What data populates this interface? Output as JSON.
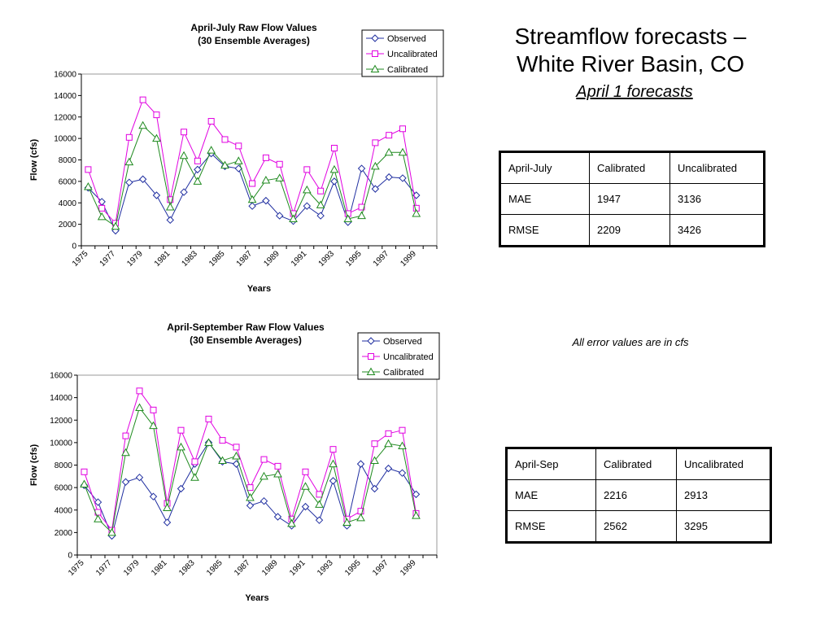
{
  "slide": {
    "title_line1": "Streamflow forecasts –",
    "title_line2": "White River Basin, CO",
    "subtitle": "April 1 forecasts",
    "note": "All error values are in cfs"
  },
  "tables": [
    {
      "header": [
        "April-July",
        "Calibrated",
        "Uncalibrated"
      ],
      "rows": [
        [
          "MAE",
          "1947",
          "3136"
        ],
        [
          "RMSE",
          "2209",
          "3426"
        ]
      ]
    },
    {
      "header": [
        "April-Sep",
        "Calibrated",
        "Uncalibrated"
      ],
      "rows": [
        [
          "MAE",
          "2216",
          "2913"
        ],
        [
          "RMSE",
          "2562",
          "3295"
        ]
      ]
    }
  ],
  "colors": {
    "observed": "#1f2ea0",
    "uncalibrated": "#e100e1",
    "calibrated": "#1f8a1f"
  },
  "chart_data": [
    {
      "type": "line",
      "title": "April-July Raw Flow Values",
      "subtitle": "(30 Ensemble Averages)",
      "xlabel": "Years",
      "ylabel": "Flow (cfs)",
      "ylim": [
        0,
        16000
      ],
      "yticks": [
        0,
        2000,
        4000,
        6000,
        8000,
        10000,
        12000,
        14000,
        16000
      ],
      "xticks": [
        "1975",
        "1977",
        "1979",
        "1981",
        "1983",
        "1985",
        "1987",
        "1989",
        "1991",
        "1993",
        "1995",
        "1997",
        "1999"
      ],
      "legend_position": "top-right",
      "x": [
        1975,
        1976,
        1977,
        1978,
        1979,
        1980,
        1981,
        1982,
        1983,
        1984,
        1985,
        1986,
        1987,
        1988,
        1989,
        1990,
        1991,
        1992,
        1993,
        1994,
        1995,
        1996,
        1997,
        1998,
        1999,
        2000
      ],
      "series": [
        {
          "name": "Observed",
          "marker": "diamond",
          "values": [
            5400,
            4100,
            1400,
            5900,
            6200,
            4700,
            2400,
            5000,
            7100,
            8600,
            7400,
            7200,
            3700,
            4200,
            2800,
            2300,
            3700,
            2800,
            6000,
            2200,
            7200,
            5300,
            6400,
            6300,
            4700,
            null
          ]
        },
        {
          "name": "Uncalibrated",
          "marker": "square",
          "values": [
            7100,
            3500,
            2100,
            10100,
            13600,
            12200,
            4300,
            10600,
            7900,
            11600,
            9900,
            9300,
            5800,
            8200,
            7600,
            3000,
            7100,
            5100,
            9100,
            3000,
            3600,
            9600,
            10300,
            10900,
            3500,
            null
          ]
        },
        {
          "name": "Calibrated",
          "marker": "triangle",
          "values": [
            5500,
            2700,
            1800,
            7800,
            11200,
            10000,
            3600,
            8400,
            6000,
            8900,
            7500,
            7900,
            4300,
            6100,
            6300,
            2500,
            5200,
            3800,
            7100,
            2500,
            2800,
            7400,
            8700,
            8700,
            3000,
            null
          ]
        }
      ]
    },
    {
      "type": "line",
      "title": "April-September Raw Flow Values",
      "subtitle": "(30 Ensemble Averages)",
      "xlabel": "Years",
      "ylabel": "Flow (cfs)",
      "ylim": [
        0,
        16000
      ],
      "yticks": [
        0,
        2000,
        4000,
        6000,
        8000,
        10000,
        12000,
        14000,
        16000
      ],
      "xticks": [
        "1975",
        "1977",
        "1979",
        "1981",
        "1983",
        "1985",
        "1987",
        "1989",
        "1991",
        "1993",
        "1995",
        "1997",
        "1999"
      ],
      "legend_position": "top-right",
      "x": [
        1975,
        1976,
        1977,
        1978,
        1979,
        1980,
        1981,
        1982,
        1983,
        1984,
        1985,
        1986,
        1987,
        1988,
        1989,
        1990,
        1991,
        1992,
        1993,
        1994,
        1995,
        1996,
        1997,
        1998,
        1999,
        2000
      ],
      "series": [
        {
          "name": "Observed",
          "marker": "diamond",
          "values": [
            6200,
            4700,
            1700,
            6500,
            6900,
            5200,
            2900,
            5900,
            8100,
            10000,
            8300,
            8100,
            4400,
            4800,
            3400,
            2600,
            4300,
            3100,
            6600,
            2600,
            8100,
            5900,
            7700,
            7300,
            5400,
            null
          ]
        },
        {
          "name": "Uncalibrated",
          "marker": "square",
          "values": [
            7400,
            3800,
            2200,
            10600,
            14600,
            12900,
            4600,
            11100,
            8300,
            12100,
            10200,
            9600,
            6000,
            8500,
            7900,
            3200,
            7400,
            5400,
            9400,
            3200,
            3900,
            9900,
            10800,
            11100,
            3700,
            null
          ]
        },
        {
          "name": "Calibrated",
          "marker": "triangle",
          "values": [
            6300,
            3200,
            2000,
            9100,
            13100,
            11500,
            4200,
            9600,
            6900,
            10000,
            8400,
            8800,
            5100,
            7000,
            7200,
            2800,
            6100,
            4500,
            8100,
            2900,
            3300,
            8400,
            9900,
            9700,
            3500,
            null
          ]
        }
      ]
    }
  ]
}
